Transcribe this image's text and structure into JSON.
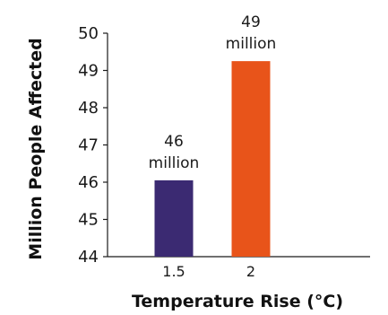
{
  "chart_data": {
    "type": "bar",
    "categories": [
      "1.5",
      "2"
    ],
    "values": [
      46.05,
      49.25
    ],
    "data_labels": [
      [
        "46",
        "million"
      ],
      [
        "49",
        "million"
      ]
    ],
    "bar_colors": [
      "#3b2a72",
      "#e8541a"
    ],
    "xlabel": "Temperature Rise (°C)",
    "ylabel": "Million People Affected",
    "ylim": [
      44,
      50
    ],
    "y_ticks": [
      "44",
      "45",
      "46",
      "47",
      "48",
      "49",
      "50"
    ],
    "grid": false
  }
}
